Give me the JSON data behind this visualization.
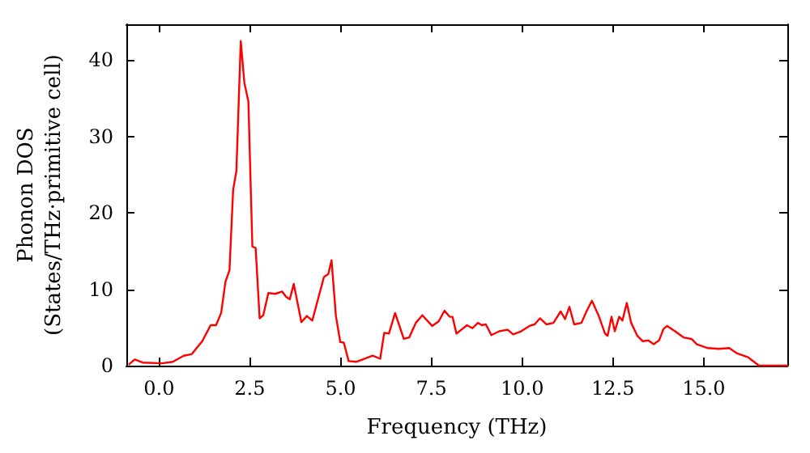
{
  "chart_data": {
    "type": "line",
    "xlabel": "Frequency (THz)",
    "ylabel": "Phonon DOS\n(States/THz·primitive cell)",
    "xlim": [
      -0.9,
      17.3
    ],
    "xticks": [
      {
        "value": 0,
        "label": "0.0"
      },
      {
        "value": 2.5,
        "label": "2.5"
      },
      {
        "value": 5,
        "label": "5.0"
      },
      {
        "value": 7.5,
        "label": "7.5"
      },
      {
        "value": 10,
        "label": "10.0"
      },
      {
        "value": 12.5,
        "label": "12.5"
      },
      {
        "value": 15,
        "label": "15.0"
      }
    ],
    "ylim": [
      0,
      44.7
    ],
    "yticks": [
      0,
      10,
      20,
      30,
      40
    ],
    "grid": false,
    "marker": "none",
    "line_style": "solid",
    "series": [
      {
        "color": "#ff0000",
        "x": [
          -0.82,
          -0.67,
          -0.45,
          0.08,
          0.38,
          0.68,
          0.9,
          1.19,
          1.42,
          1.57,
          1.71,
          1.83,
          1.94,
          2.04,
          2.13,
          2.25,
          2.35,
          2.46,
          2.57,
          2.66,
          2.77,
          2.87,
          3.01,
          3.2,
          3.39,
          3.5,
          3.6,
          3.71,
          3.92,
          4.07,
          4.22,
          4.54,
          4.66,
          4.75,
          4.87,
          4.99,
          5.09,
          5.22,
          5.43,
          5.88,
          6.09,
          6.2,
          6.33,
          6.5,
          6.74,
          6.89,
          7.07,
          7.25,
          7.52,
          7.7,
          7.86,
          8.0,
          8.08,
          8.19,
          8.48,
          8.63,
          8.78,
          8.89,
          9.0,
          9.15,
          9.37,
          9.6,
          9.75,
          9.97,
          10.2,
          10.34,
          10.49,
          10.67,
          10.86,
          11.06,
          11.18,
          11.3,
          11.43,
          11.63,
          11.77,
          11.92,
          12.1,
          12.28,
          12.35,
          12.46,
          12.55,
          12.67,
          12.76,
          12.88,
          13.0,
          13.17,
          13.32,
          13.47,
          13.62,
          13.77,
          13.89,
          13.99,
          14.21,
          14.44,
          14.66,
          14.81,
          15.11,
          15.41,
          15.7,
          15.92,
          16.22,
          16.41,
          16.52,
          17.3
        ],
        "values": [
          0.2,
          0.8,
          0.4,
          0.3,
          0.5,
          1.3,
          1.5,
          3.2,
          5.3,
          5.3,
          6.9,
          11,
          12.5,
          23,
          25.5,
          42.5,
          37,
          34.6,
          15.6,
          15.4,
          6.2,
          6.6,
          9.5,
          9.4,
          9.7,
          9.0,
          8.7,
          10.7,
          5.7,
          6.5,
          5.9,
          11.6,
          12.0,
          13.8,
          6.5,
          3.1,
          3.0,
          0.6,
          0.5,
          1.3,
          0.9,
          4.3,
          4.2,
          6.9,
          3.5,
          3.7,
          5.6,
          6.6,
          5.2,
          5.8,
          7.2,
          6.4,
          6.4,
          4.2,
          5.3,
          4.9,
          5.6,
          5.3,
          5.4,
          4.0,
          4.5,
          4.7,
          4.1,
          4.5,
          5.2,
          5.4,
          6.2,
          5.4,
          5.6,
          7.1,
          6.1,
          7.7,
          5.4,
          5.6,
          7.1,
          8.5,
          6.6,
          4.2,
          3.9,
          6.4,
          4.5,
          6.4,
          5.9,
          8.2,
          5.6,
          3.9,
          3.2,
          3.3,
          2.8,
          3.3,
          4.8,
          5.2,
          4.5,
          3.7,
          3.5,
          2.8,
          2.3,
          2.2,
          2.3,
          1.6,
          1.1,
          0.4,
          0.0,
          0.0
        ]
      }
    ]
  }
}
